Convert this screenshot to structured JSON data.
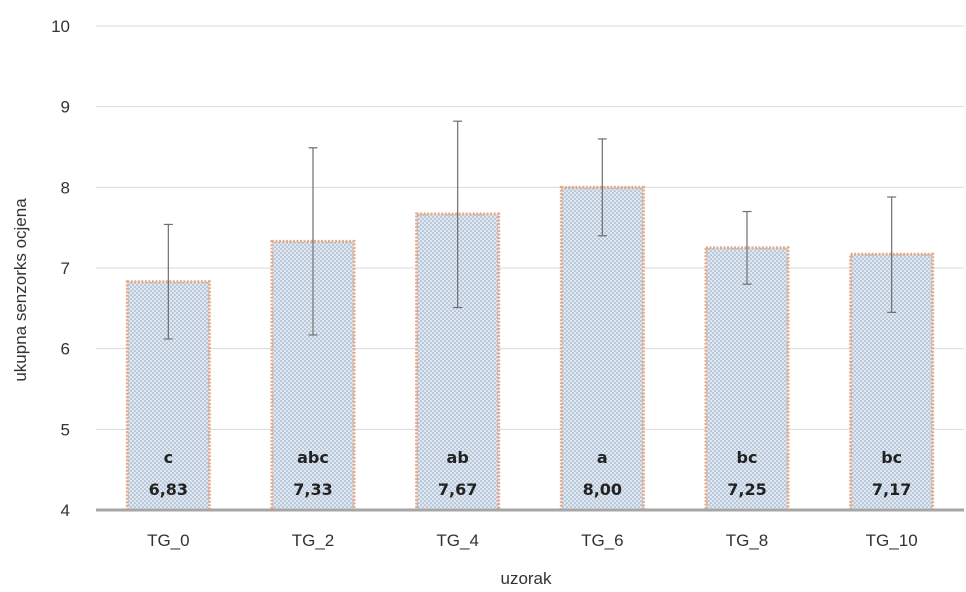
{
  "chart_data": {
    "type": "bar",
    "title": "",
    "xlabel": "uzorak",
    "ylabel": "ukupna senzorks ocjena",
    "ylim": [
      4,
      10
    ],
    "yticks": [
      4,
      5,
      6,
      7,
      8,
      9,
      10
    ],
    "grid": true,
    "legend": "none",
    "categories": [
      "TG_0",
      "TG_2",
      "TG_4",
      "TG_6",
      "TG_8",
      "TG_10"
    ],
    "values": [
      6.83,
      7.33,
      7.67,
      8.0,
      7.25,
      7.17
    ],
    "value_labels": [
      "6,83",
      "7,33",
      "7,67",
      "8,00",
      "7,25",
      "7,17"
    ],
    "letters": [
      "c",
      "abc",
      "ab",
      "a",
      "bc",
      "bc"
    ],
    "error_bars": [
      {
        "low": 6.12,
        "high": 7.54
      },
      {
        "low": 6.17,
        "high": 8.49
      },
      {
        "low": 6.51,
        "high": 8.82
      },
      {
        "low": 7.4,
        "high": 8.6
      },
      {
        "low": 6.8,
        "high": 7.7
      },
      {
        "low": 6.45,
        "high": 7.88
      }
    ],
    "colors": {
      "bar_fill": "#dfe8f2",
      "bar_dots": "#8aa0b8",
      "bar_border": "#e3a98a",
      "grid": "#d9d9d9",
      "axis": "#a6a6a6",
      "error_bar": "#6e6e6e"
    }
  }
}
